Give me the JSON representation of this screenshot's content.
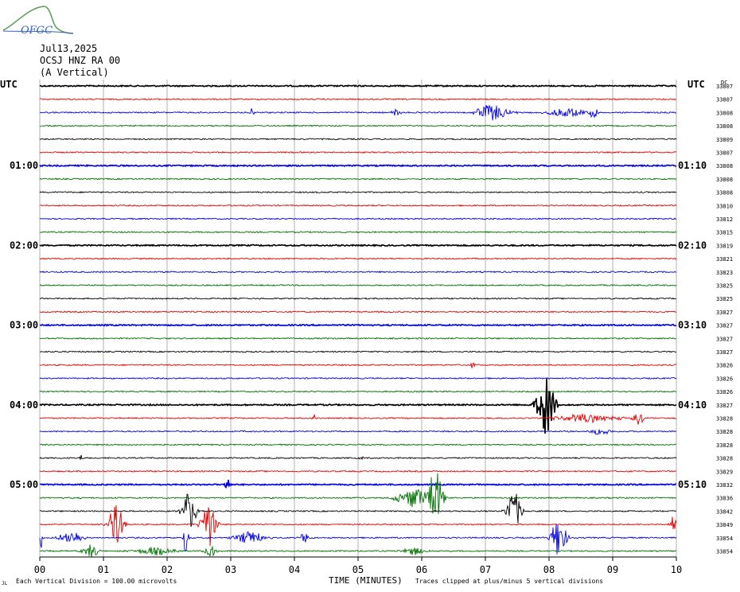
{
  "header": {
    "logo_text": "OFGC",
    "date": "Jul13,2025",
    "station": "OCSJ HNZ RA 00",
    "component": "(A Vertical)"
  },
  "axis": {
    "left_title": "UTC",
    "right_title": "UTC",
    "right_top_mark": "DC",
    "xlabel": "TIME (MINUTES)",
    "xticks": [
      "00",
      "01",
      "02",
      "03",
      "04",
      "05",
      "06",
      "07",
      "08",
      "09",
      "10"
    ]
  },
  "footer": {
    "scale_note": "Each Vertical Division =  100.00 microvolts",
    "clip_note": "Traces clipped at plus/minus 5 vertical divisions"
  },
  "colors": {
    "trace_cycle": [
      "#000000",
      "#e00000",
      "#0000e0",
      "#007000"
    ],
    "grid": "#b0b0b0"
  },
  "chart_data": {
    "type": "line",
    "title": "",
    "xlabel": "TIME (MINUTES)",
    "xlim": [
      0,
      10
    ],
    "trace_count": 36,
    "left_hour_labels": [
      {
        "trace": 6,
        "label": "01:00"
      },
      {
        "trace": 12,
        "label": "02:00"
      },
      {
        "trace": 18,
        "label": "03:00"
      },
      {
        "trace": 24,
        "label": "04:00"
      },
      {
        "trace": 30,
        "label": "05:00"
      }
    ],
    "right_hour_labels": [
      {
        "trace": 6,
        "label": "01:10"
      },
      {
        "trace": 12,
        "label": "02:10"
      },
      {
        "trace": 18,
        "label": "03:10"
      },
      {
        "trace": 24,
        "label": "04:10"
      },
      {
        "trace": 30,
        "label": "05:10"
      }
    ],
    "dc_offsets": [
      "33807",
      "33807",
      "33808",
      "33808",
      "33809",
      "33807",
      "33808",
      "33808",
      "33808",
      "33810",
      "33812",
      "33815",
      "33819",
      "33821",
      "33823",
      "33825",
      "33825",
      "33827",
      "33827",
      "33827",
      "33827",
      "33826",
      "33826",
      "33826",
      "33827",
      "33828",
      "33828",
      "33828",
      "33828",
      "33829",
      "33832",
      "33836",
      "33842",
      "33849",
      "33854",
      "33854"
    ],
    "events": [
      {
        "trace": 2,
        "minute": 3.35,
        "amp": 0.45,
        "width": 0.05
      },
      {
        "trace": 2,
        "minute": 5.6,
        "amp": 0.25,
        "width": 0.1
      },
      {
        "trace": 2,
        "minute": 7.1,
        "amp": 0.6,
        "width": 0.35
      },
      {
        "trace": 2,
        "minute": 8.3,
        "amp": 0.35,
        "width": 0.4
      },
      {
        "trace": 2,
        "minute": 8.7,
        "amp": 0.4,
        "width": 0.1
      },
      {
        "trace": 21,
        "minute": 6.8,
        "amp": 0.3,
        "width": 0.05
      },
      {
        "trace": 24,
        "minute": 7.95,
        "amp": 2.2,
        "width": 0.18
      },
      {
        "trace": 25,
        "minute": 4.3,
        "amp": 0.4,
        "width": 0.03
      },
      {
        "trace": 25,
        "minute": 8.6,
        "amp": 0.3,
        "width": 0.7
      },
      {
        "trace": 25,
        "minute": 9.4,
        "amp": 0.5,
        "width": 0.12
      },
      {
        "trace": 26,
        "minute": 8.8,
        "amp": 0.25,
        "width": 0.2
      },
      {
        "trace": 28,
        "minute": 0.65,
        "amp": 0.4,
        "width": 0.03
      },
      {
        "trace": 28,
        "minute": 5.05,
        "amp": 0.3,
        "width": 0.03
      },
      {
        "trace": 30,
        "minute": 2.95,
        "amp": 0.6,
        "width": 0.05
      },
      {
        "trace": 31,
        "minute": 5.85,
        "amp": 0.7,
        "width": 0.35
      },
      {
        "trace": 31,
        "minute": 6.2,
        "amp": 2.6,
        "width": 0.15
      },
      {
        "trace": 32,
        "minute": 2.35,
        "amp": 1.4,
        "width": 0.15
      },
      {
        "trace": 32,
        "minute": 7.45,
        "amp": 1.5,
        "width": 0.15
      },
      {
        "trace": 33,
        "minute": 1.2,
        "amp": 1.6,
        "width": 0.15
      },
      {
        "trace": 33,
        "minute": 2.65,
        "amp": 1.8,
        "width": 0.15
      },
      {
        "trace": 33,
        "minute": 10.0,
        "amp": 1.2,
        "width": 0.1
      },
      {
        "trace": 34,
        "minute": 0.0,
        "amp": 1.2,
        "width": 0.05
      },
      {
        "trace": 34,
        "minute": 0.5,
        "amp": 0.5,
        "width": 0.25
      },
      {
        "trace": 34,
        "minute": 2.3,
        "amp": 2.0,
        "width": 0.04
      },
      {
        "trace": 34,
        "minute": 3.3,
        "amp": 0.5,
        "width": 0.3
      },
      {
        "trace": 34,
        "minute": 4.15,
        "amp": 0.5,
        "width": 0.08
      },
      {
        "trace": 34,
        "minute": 8.15,
        "amp": 1.6,
        "width": 0.15
      },
      {
        "trace": 35,
        "minute": 0.8,
        "amp": 0.5,
        "width": 0.15
      },
      {
        "trace": 35,
        "minute": 1.8,
        "amp": 0.3,
        "width": 0.4
      },
      {
        "trace": 35,
        "minute": 2.7,
        "amp": 0.4,
        "width": 0.15
      },
      {
        "trace": 35,
        "minute": 5.9,
        "amp": 0.3,
        "width": 0.25
      }
    ]
  }
}
